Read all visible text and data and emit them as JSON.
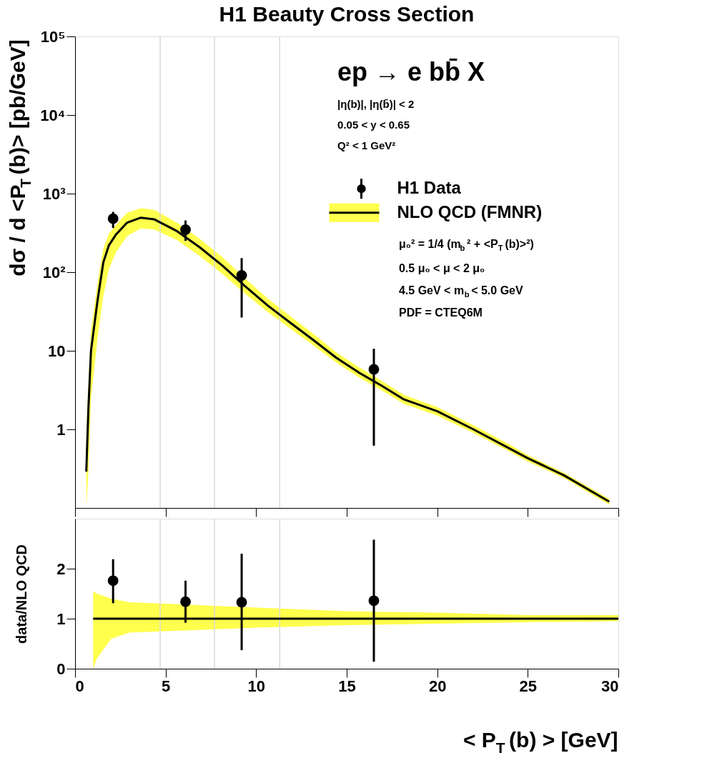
{
  "chart_data": [
    {
      "type": "line",
      "title": "H1 Beauty Cross Section",
      "ylabel": "dσ / d <P$_{T}$(b)> [pb/GeV]",
      "log": "y",
      "xlim": [
        0,
        30
      ],
      "ylim": [
        0.1,
        100000
      ],
      "xticks": [
        0,
        5,
        10,
        15,
        20,
        25,
        30
      ],
      "yticks": [
        1,
        10,
        {
          "value": 100,
          "label": "10²"
        },
        {
          "value": 1000,
          "label": "10³"
        },
        {
          "value": 10000,
          "label": "10⁴"
        },
        {
          "value": 100000,
          "label": "10⁵"
        }
      ],
      "tick_labels": "y",
      "grid": false,
      "legend": "top right",
      "annotations": [
        "ep → e bb̄ X",
        "|η(b)|, |η(b̄)| < 2",
        "0.05 < y < 0.65",
        "Q² < 1 GeV²",
        "μ₀² = 1/4 (m$_{b}$² + <P$_{T}$(b)>²)",
        "0.5 μ₀ < μ < 2 μ₀",
        "4.5 GeV < m$_{b}$ < 5.0 GeV",
        "PDF = CTEQ6M"
      ],
      "ref_lines": [
        {
          "axis": "x",
          "value": 4.7,
          "color": "#d9d9d9"
        },
        {
          "axis": "x",
          "value": 7.7,
          "color": "#d9d9d9"
        },
        {
          "axis": "x",
          "value": 11.3,
          "color": "#d9d9d9"
        }
      ],
      "series": [
        {
          "name": "NLO QCD (FMNR)",
          "type": "line",
          "color": "#000000",
          "x": [
            0.62,
            0.74,
            0.88,
            1.25,
            1.56,
            1.87,
            2.26,
            2.88,
            3.63,
            4.38,
            5.64,
            6.89,
            8.14,
            9.4,
            10.65,
            11.9,
            13.16,
            14.41,
            15.66,
            16.92,
            18.17,
            20,
            22,
            24,
            25,
            27,
            29.5
          ],
          "values": [
            0.29,
            1.9,
            10,
            45,
            133,
            220,
            302,
            428,
            494,
            470,
            332,
            207,
            121,
            66,
            37.5,
            22.6,
            13.7,
            8.2,
            5.3,
            3.6,
            2.4,
            1.7,
            1.0,
            0.57,
            0.43,
            0.26,
            0.12
          ],
          "lower": [
            0.1,
            0.3,
            2.5,
            15,
            50,
            110,
            180,
            290,
            360,
            350,
            255,
            160,
            95,
            53,
            31,
            19,
            11.7,
            7.1,
            4.6,
            3.15,
            2.1,
            1.5,
            0.9,
            0.52,
            0.39,
            0.24,
            0.11
          ],
          "upper": [
            0.9,
            4,
            18,
            75,
            200,
            310,
            400,
            570,
            650,
            620,
            425,
            265,
            155,
            83,
            46,
            27.5,
            16.4,
            9.6,
            6.2,
            4.15,
            2.75,
            1.92,
            1.13,
            0.64,
            0.47,
            0.28,
            0.13
          ]
        },
        {
          "name": "H1 Data",
          "type": "scatter",
          "color": "#000000",
          "marker": "circle",
          "x": [
            2.1,
            6.1,
            9.2,
            16.5
          ],
          "values": [
            480,
            348,
            91,
            5.8
          ],
          "errors": [
            [
              365,
              586
            ],
            [
              250,
              455
            ],
            [
              26.5,
              151
            ],
            [
              0.62,
              10.6
            ]
          ]
        }
      ]
    },
    {
      "type": "line",
      "xlabel": "< P$_{T}$(b) > [GeV]",
      "ylabel": "data/NLO QCD",
      "xlim": [
        0,
        30
      ],
      "ylim": [
        0,
        3
      ],
      "xticks": [
        0,
        5,
        10,
        15,
        20,
        25,
        30
      ],
      "yticks": [
        0,
        1,
        2
      ],
      "grid": false,
      "ref_lines": [
        {
          "axis": "x",
          "value": 4.7,
          "color": "#d9d9d9"
        },
        {
          "axis": "x",
          "value": 7.7,
          "color": "#d9d9d9"
        },
        {
          "axis": "x",
          "value": 11.3,
          "color": "#d9d9d9"
        }
      ],
      "series": [
        {
          "type": "line",
          "color": "#000000",
          "x": [
            1,
            1.2,
            2,
            3,
            5,
            10,
            15,
            20,
            25,
            30
          ],
          "values": [
            1,
            1,
            1,
            1,
            1,
            1,
            1,
            1,
            1,
            1
          ],
          "lower": [
            0.0,
            0.2,
            0.6,
            0.72,
            0.75,
            0.82,
            0.87,
            0.9,
            0.93,
            0.95
          ],
          "upper": [
            1.55,
            1.5,
            1.4,
            1.33,
            1.3,
            1.22,
            1.15,
            1.12,
            1.07,
            1.07
          ]
        },
        {
          "type": "scatter",
          "color": "#000000",
          "marker": "circle",
          "x": [
            2.1,
            6.1,
            9.2,
            16.5
          ],
          "values": [
            1.76,
            1.34,
            1.33,
            1.36
          ],
          "errors": [
            [
              1.31,
              2.19
            ],
            [
              0.92,
              1.76
            ],
            [
              0.37,
              2.3
            ],
            [
              0.14,
              2.58
            ]
          ]
        }
      ]
    }
  ]
}
